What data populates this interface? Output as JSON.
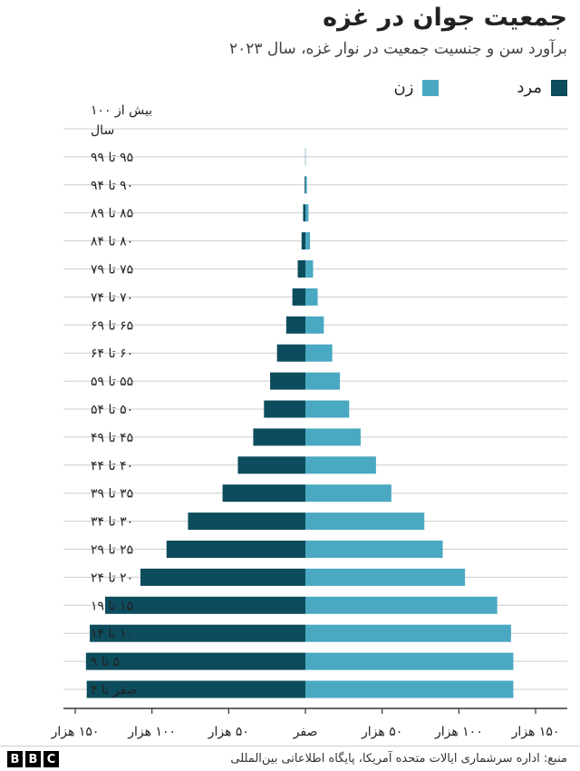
{
  "header": {
    "title": "جمعیت جوان در غزه",
    "subtitle": "برآورد سن و جنسیت جمعیت در نوار غزه، سال ۲۰۲۳"
  },
  "legend": {
    "male_label": "مرد",
    "female_label": "زن"
  },
  "colors": {
    "male": "#0d4c5d",
    "female": "#4aa8c2",
    "axis": "#333333",
    "grid": "#cccccc"
  },
  "footer": {
    "source": "منبع: اداره سرشماری ایالات متحده آمریکا، پایگاه اطلاعاتی بین‌المللی",
    "logo_letters": [
      "B",
      "B",
      "C"
    ]
  },
  "chart_data": {
    "type": "bar",
    "orientation": "horizontal",
    "layout": "population-pyramid",
    "categories": [
      "بیش از ۱۰۰ سال",
      "۹۵ تا ۹۹",
      "۹۰ تا ۹۴",
      "۸۵ تا ۸۹",
      "۸۰ تا ۸۴",
      "۷۵ تا ۷۹",
      "۷۰ تا ۷۴",
      "۶۵ تا ۶۹",
      "۶۰ تا ۶۴",
      "۵۵ تا ۵۹",
      "۵۰ تا ۵۴",
      "۴۵ تا ۴۹",
      "۴۰ تا ۴۴",
      "۳۵ تا ۳۹",
      "۳۰ تا ۳۴",
      "۲۵ تا ۲۹",
      "۲۰ تا ۲۴",
      "۱۵ تا ۱۹",
      "۱۰ تا ۱۴",
      "۵ تا ۹",
      "صفر تا ۴"
    ],
    "series": [
      {
        "name": "مرد",
        "side": "left",
        "values": [
          0,
          100,
          500,
          1500,
          2500,
          5000,
          8500,
          12500,
          18500,
          23000,
          27000,
          34000,
          44000,
          54000,
          76500,
          90500,
          107500,
          130500,
          140500,
          143000,
          142500
        ]
      },
      {
        "name": "زن",
        "side": "right",
        "values": [
          0,
          200,
          1000,
          2000,
          3000,
          5000,
          8000,
          12000,
          17500,
          22500,
          28500,
          36000,
          46000,
          56000,
          77500,
          89500,
          104000,
          125000,
          134000,
          135500,
          135500
        ]
      }
    ],
    "x_ticks": [
      {
        "value": -150000,
        "label": "۱۵۰ هزار"
      },
      {
        "value": -100000,
        "label": "۱۰۰ هزار"
      },
      {
        "value": -50000,
        "label": "۵۰ هزار"
      },
      {
        "value": 0,
        "label": "صفر"
      },
      {
        "value": 50000,
        "label": "۵۰ هزار"
      },
      {
        "value": 100000,
        "label": "۱۰۰ هزار"
      },
      {
        "value": 150000,
        "label": "۱۵۰ هزار"
      }
    ],
    "xlim": [
      -150000,
      150000
    ],
    "grid": true,
    "legend_position": "top-right"
  }
}
